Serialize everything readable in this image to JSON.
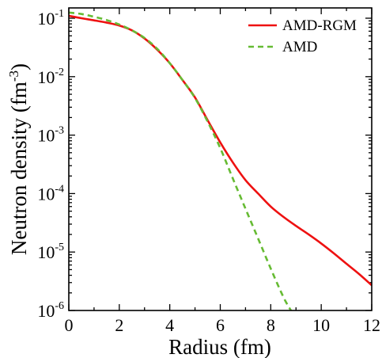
{
  "chart_data": {
    "type": "line",
    "title": "",
    "xlabel": "Radius (fm)",
    "ylabel": "Neutron  density (fm",
    "ylabel_exp": "-3",
    "ylabel_close": ")",
    "xlim": [
      0,
      12
    ],
    "ylim": [
      1e-06,
      0.15
    ],
    "y_scale": "log",
    "grid": false,
    "legend_position": "top-right",
    "x_ticks": [
      {
        "value": 0,
        "label": "0"
      },
      {
        "value": 2,
        "label": "2"
      },
      {
        "value": 4,
        "label": "4"
      },
      {
        "value": 6,
        "label": "6"
      },
      {
        "value": 8,
        "label": "8"
      },
      {
        "value": 10,
        "label": "10"
      },
      {
        "value": 12,
        "label": "12"
      }
    ],
    "y_ticks": [
      {
        "value": 0.1,
        "base": "10",
        "exp": "-1"
      },
      {
        "value": 0.01,
        "base": "10",
        "exp": "-2"
      },
      {
        "value": 0.001,
        "base": "10",
        "exp": "-3"
      },
      {
        "value": 0.0001,
        "base": "10",
        "exp": "-4"
      },
      {
        "value": 1e-05,
        "base": "10",
        "exp": "-5"
      },
      {
        "value": 1e-06,
        "base": "10",
        "exp": "-6"
      }
    ],
    "series": [
      {
        "name": "AMD-RGM",
        "color": "#ee1111",
        "dash": "solid",
        "x": [
          0,
          0.5,
          1,
          1.5,
          2,
          2.5,
          3,
          3.5,
          4,
          4.5,
          5,
          5.5,
          6,
          6.5,
          7,
          7.5,
          8,
          8.5,
          9,
          9.5,
          10,
          10.5,
          11,
          11.5,
          12
        ],
        "y": [
          0.11,
          0.1,
          0.092,
          0.084,
          0.075,
          0.062,
          0.045,
          0.029,
          0.017,
          0.0088,
          0.0044,
          0.0018,
          0.00075,
          0.00034,
          0.00017,
          0.0001,
          6e-05,
          4e-05,
          2.8e-05,
          2e-05,
          1.4e-05,
          9.5e-06,
          6.3e-06,
          4.2e-06,
          2.7e-06
        ]
      },
      {
        "name": "AMD",
        "color": "#66bb33",
        "dash": "dashed",
        "x": [
          0,
          0.5,
          1,
          1.5,
          2,
          2.5,
          3,
          3.5,
          4,
          4.5,
          5,
          5.5,
          6,
          6.5,
          7,
          7.5,
          8,
          8.5,
          8.8
        ],
        "y": [
          0.125,
          0.118,
          0.106,
          0.093,
          0.078,
          0.062,
          0.046,
          0.03,
          0.017,
          0.0088,
          0.0043,
          0.0017,
          0.0006,
          0.00018,
          5.5e-05,
          1.7e-05,
          5.2e-06,
          1.7e-06,
          1e-06
        ]
      }
    ]
  }
}
